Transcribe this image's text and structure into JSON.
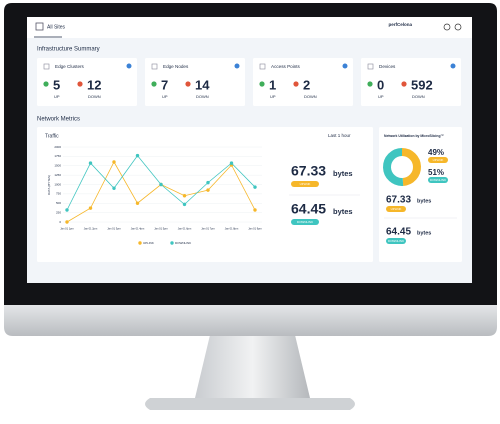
{
  "header": {
    "title": "All Sites",
    "user": "perfCelona"
  },
  "summary": {
    "title": "Infrastructure Summary",
    "cards": [
      {
        "label": "Edge Clusters",
        "up": 5,
        "up_label": "UP",
        "down": 12,
        "down_label": "DOWN"
      },
      {
        "label": "Edge Nodes",
        "up": 7,
        "up_label": "UP",
        "down": 14,
        "down_label": "DOWN"
      },
      {
        "label": "Access Points",
        "up": 1,
        "up_label": "UP",
        "down": 2,
        "down_label": "DOWN"
      },
      {
        "label": "Devices",
        "up": 0,
        "up_label": "UP",
        "down": 592,
        "down_label": "DOWN"
      }
    ]
  },
  "metrics": {
    "title": "Network Metrics",
    "traffic": {
      "type": "line",
      "title": "Traffic",
      "range": "Last 1 hour",
      "y_label": "DATA (BYTES)",
      "categories": [
        "Jan 01 1pm",
        "Jan 01 2pm",
        "Jan 01 3pm",
        "Jan 01 4pm",
        "Jan 01 5pm",
        "Jan 01 6pm",
        "Jan 01 7pm",
        "Jan 01 8pm",
        "Jan 01 9pm"
      ],
      "series": [
        {
          "name": "UPLINK",
          "color": "#f6b72a",
          "values": [
            0,
            370,
            1600,
            500,
            1000,
            700,
            850,
            1520,
            320
          ]
        },
        {
          "name": "DOWNLINK",
          "color": "#3fc5c0",
          "values": [
            320,
            1570,
            900,
            1770,
            1000,
            470,
            1050,
            1570,
            930
          ]
        }
      ],
      "ylim": [
        0,
        2000
      ],
      "yticks": [
        0,
        250,
        500,
        750,
        1000,
        1250,
        1500,
        1750,
        2000
      ],
      "grid": true,
      "totals": [
        {
          "value": 67.33,
          "unit": "bytes",
          "label": "UPLINK"
        },
        {
          "value": 64.45,
          "unit": "bytes",
          "label": "DOWNLINK"
        }
      ]
    },
    "utilization": {
      "type": "pie",
      "title": "Network Utilization by MicroSlicing™",
      "values": [
        49,
        51
      ],
      "value_labels": [
        "49%",
        "51%"
      ],
      "labels": [
        "UPLINK",
        "DOWNLINK"
      ],
      "colors": [
        "#f6b72a",
        "#3fc5c0"
      ],
      "totals": [
        {
          "value": 67.33,
          "unit": "bytes",
          "label": "UPLINK"
        },
        {
          "value": 64.45,
          "unit": "bytes",
          "label": "DOWNLINK"
        }
      ]
    }
  }
}
